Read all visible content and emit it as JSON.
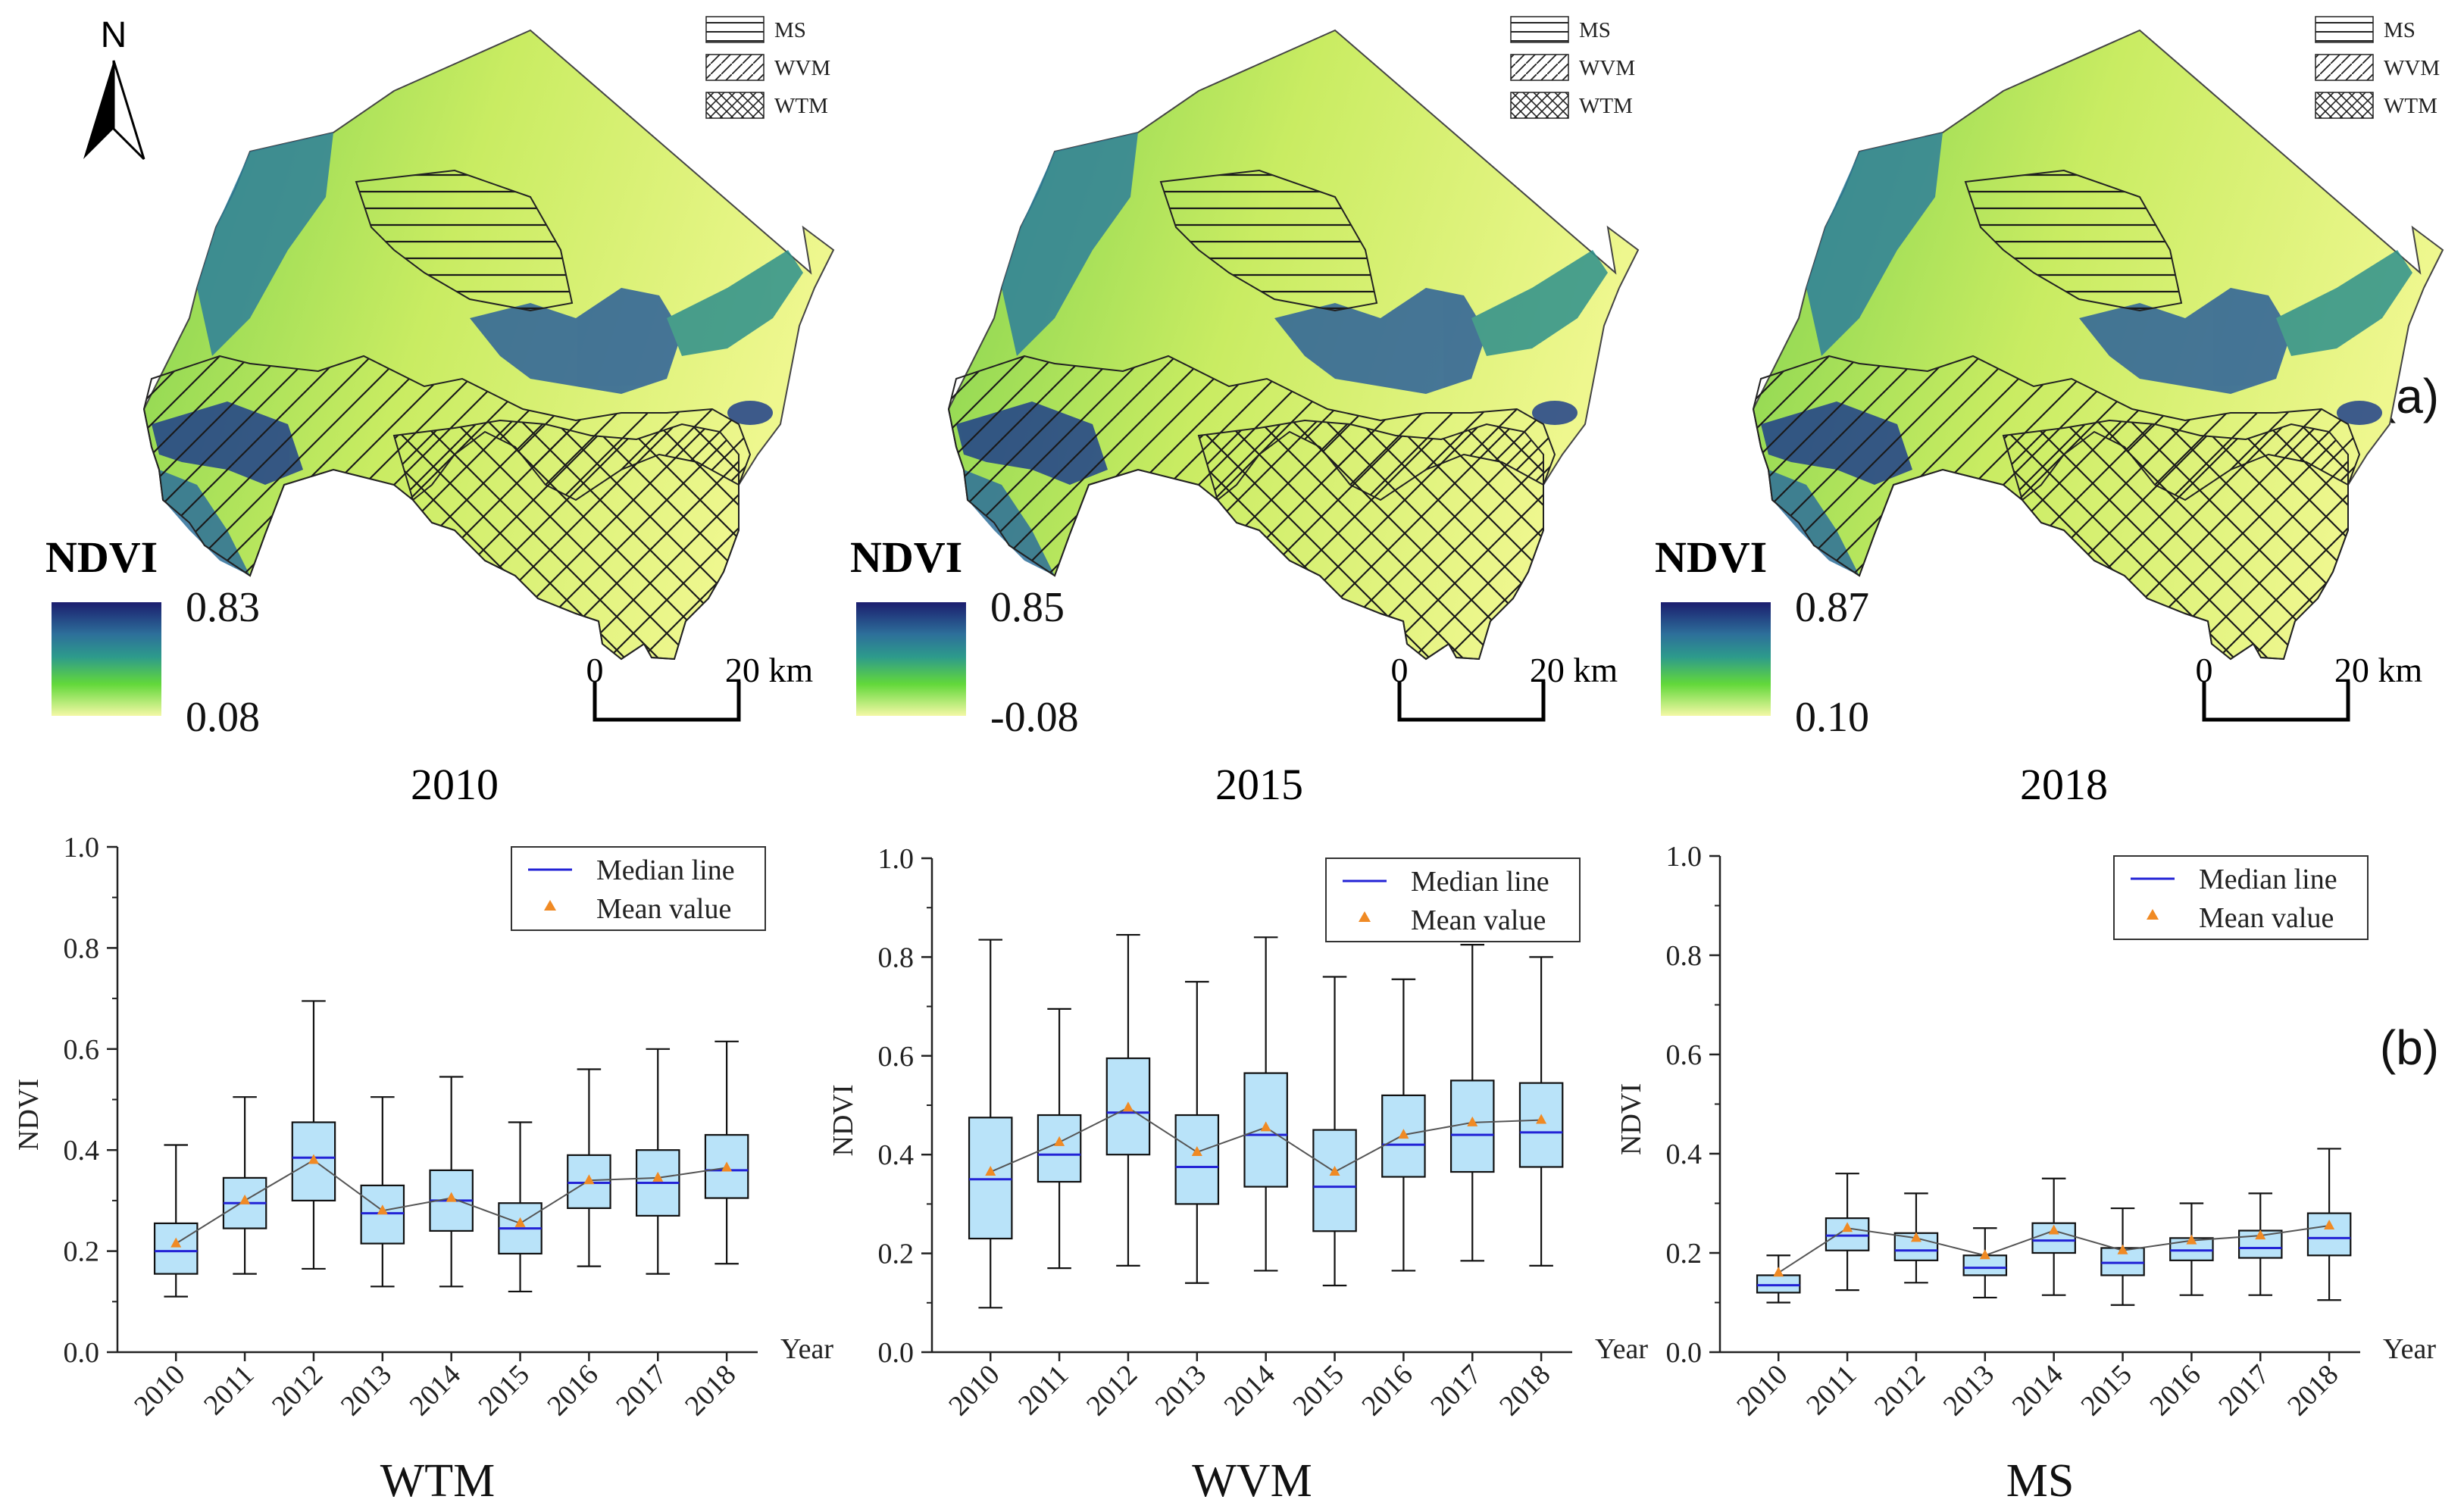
{
  "colors": {
    "ndvi_high": "#1b1d6e",
    "ndvi_mid": "#2d9a8c",
    "ndvi_green": "#62d83a",
    "ndvi_low": "#f4f8a6",
    "box_fill": "#b9e3f9",
    "median_line": "#2323d6",
    "mean_marker": "#f08a24",
    "axis": "#222222"
  },
  "panel_labels": {
    "a": "(a)",
    "b": "(b)"
  },
  "maps": [
    {
      "year": "2010",
      "legend_title": "NDVI",
      "legend_max": "0.83",
      "legend_min": "0.08",
      "scale_zero": "0",
      "scale_label": "20 km",
      "north_label": "N",
      "zones": [
        "MS",
        "WVM",
        "WTM"
      ],
      "icons": [
        "north-arrow-icon",
        "horizontal-hatch",
        "diagonal-hatch",
        "cross-hatch"
      ]
    },
    {
      "year": "2015",
      "legend_title": "NDVI",
      "legend_max": "0.85",
      "legend_min": "-0.08",
      "scale_zero": "0",
      "scale_label": "20 km",
      "zones": [
        "MS",
        "WVM",
        "WTM"
      ]
    },
    {
      "year": "2018",
      "legend_title": "NDVI",
      "legend_max": "0.87",
      "legend_min": "0.10",
      "scale_zero": "0",
      "scale_label": "20 km",
      "zones": [
        "MS",
        "WVM",
        "WTM"
      ]
    }
  ],
  "chart_data": [
    {
      "type": "box",
      "title": "WTM",
      "xlabel": "Year",
      "ylabel": "NDVI",
      "ylim": [
        0,
        1.0
      ],
      "yticks": [
        "0.0",
        "0.2",
        "0.4",
        "0.6",
        "0.8",
        "1.0"
      ],
      "categories": [
        "2010",
        "2011",
        "2012",
        "2013",
        "2014",
        "2015",
        "2016",
        "2017",
        "2018"
      ],
      "legend": [
        "Median line",
        "Mean value"
      ],
      "legend_position": "top-right",
      "min": [
        0.11,
        0.155,
        0.165,
        0.13,
        0.13,
        0.12,
        0.17,
        0.155,
        0.175
      ],
      "q1": [
        0.155,
        0.245,
        0.3,
        0.215,
        0.24,
        0.195,
        0.285,
        0.27,
        0.305
      ],
      "median": [
        0.2,
        0.295,
        0.385,
        0.275,
        0.3,
        0.245,
        0.335,
        0.335,
        0.36
      ],
      "q3": [
        0.255,
        0.345,
        0.455,
        0.33,
        0.36,
        0.295,
        0.39,
        0.4,
        0.43
      ],
      "max": [
        0.41,
        0.505,
        0.695,
        0.505,
        0.545,
        0.455,
        0.56,
        0.6,
        0.615
      ],
      "mean": [
        0.215,
        0.3,
        0.38,
        0.28,
        0.305,
        0.255,
        0.34,
        0.345,
        0.365
      ]
    },
    {
      "type": "box",
      "title": "WVM",
      "xlabel": "Year",
      "ylabel": "NDVI",
      "ylim": [
        0,
        1.0
      ],
      "yticks": [
        "0.0",
        "0.2",
        "0.4",
        "0.6",
        "0.8",
        "1.0"
      ],
      "categories": [
        "2010",
        "2011",
        "2012",
        "2013",
        "2014",
        "2015",
        "2016",
        "2017",
        "2018"
      ],
      "legend": [
        "Median line",
        "Mean value"
      ],
      "legend_position": "top-right",
      "min": [
        0.09,
        0.17,
        0.175,
        0.14,
        0.165,
        0.135,
        0.165,
        0.185,
        0.175
      ],
      "q1": [
        0.23,
        0.345,
        0.4,
        0.3,
        0.335,
        0.245,
        0.355,
        0.365,
        0.375
      ],
      "median": [
        0.35,
        0.4,
        0.485,
        0.375,
        0.44,
        0.335,
        0.42,
        0.44,
        0.445
      ],
      "q3": [
        0.475,
        0.48,
        0.595,
        0.48,
        0.565,
        0.45,
        0.52,
        0.55,
        0.545
      ],
      "max": [
        0.835,
        0.695,
        0.845,
        0.75,
        0.84,
        0.76,
        0.755,
        0.825,
        0.8
      ],
      "mean": [
        0.365,
        0.425,
        0.495,
        0.405,
        0.455,
        0.365,
        0.44,
        0.465,
        0.47
      ]
    },
    {
      "type": "box",
      "title": "MS",
      "xlabel": "Year",
      "ylabel": "NDVI",
      "ylim": [
        0,
        1.0
      ],
      "yticks": [
        "0.0",
        "0.2",
        "0.4",
        "0.6",
        "0.8",
        "1.0"
      ],
      "categories": [
        "2010",
        "2011",
        "2012",
        "2013",
        "2014",
        "2015",
        "2016",
        "2017",
        "2018"
      ],
      "legend": [
        "Median line",
        "Mean value"
      ],
      "legend_position": "top-right",
      "min": [
        0.1,
        0.125,
        0.14,
        0.11,
        0.115,
        0.095,
        0.115,
        0.115,
        0.105
      ],
      "q1": [
        0.12,
        0.205,
        0.185,
        0.155,
        0.2,
        0.155,
        0.185,
        0.19,
        0.195
      ],
      "median": [
        0.135,
        0.235,
        0.205,
        0.17,
        0.225,
        0.18,
        0.205,
        0.21,
        0.23
      ],
      "q3": [
        0.155,
        0.27,
        0.24,
        0.195,
        0.26,
        0.21,
        0.23,
        0.245,
        0.28
      ],
      "max": [
        0.195,
        0.36,
        0.32,
        0.25,
        0.35,
        0.29,
        0.3,
        0.32,
        0.41
      ],
      "mean": [
        0.16,
        0.25,
        0.23,
        0.195,
        0.245,
        0.205,
        0.225,
        0.235,
        0.255
      ]
    }
  ]
}
